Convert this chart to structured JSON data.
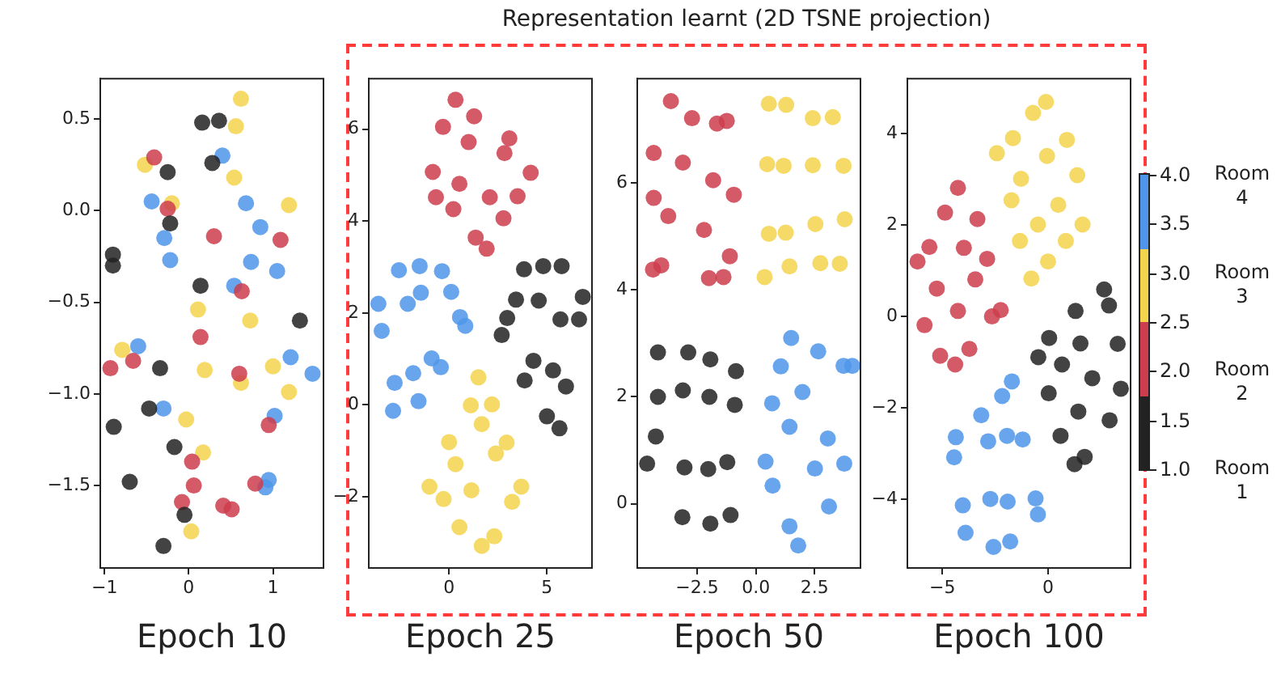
{
  "chart_data": [
    {
      "type": "scatter",
      "xlabel": "Epoch 10",
      "xlim": [
        -1.05,
        1.6
      ],
      "ylim": [
        -1.95,
        0.72
      ],
      "xticks": [
        {
          "value": -1,
          "label": "−1"
        },
        0,
        1
      ],
      "yticks": [
        {
          "value": -1.5,
          "label": "−1.5"
        },
        {
          "value": -1,
          "label": "−1.0"
        },
        {
          "value": -0.5,
          "label": "−0.5"
        },
        {
          "value": 0,
          "label": "0.0"
        },
        0.5
      ],
      "marker": "circle",
      "series": [
        {
          "color": "#222222",
          "x": [
            0.16,
            0.36,
            -0.25,
            0.28,
            -0.22,
            -0.9,
            -0.9,
            0.14,
            1.32,
            -0.34,
            -0.47,
            -0.89,
            -0.17,
            -0.7,
            -0.05,
            -0.3
          ],
          "values": [
            0.48,
            0.49,
            0.21,
            0.26,
            -0.07,
            -0.24,
            -0.3,
            -0.41,
            -0.6,
            -0.86,
            -1.08,
            -1.18,
            -1.29,
            -1.48,
            -1.66,
            -1.83
          ]
        },
        {
          "color": "#cc3d4d",
          "x": [
            -0.41,
            -0.25,
            0.3,
            1.09,
            0.63,
            0.14,
            -0.93,
            -0.66,
            0.6,
            0.95,
            0.04,
            0.06,
            0.79,
            -0.08,
            0.41,
            0.51
          ],
          "values": [
            0.29,
            0.01,
            -0.14,
            -0.16,
            -0.44,
            -0.69,
            -0.86,
            -0.82,
            -0.89,
            -1.17,
            -1.37,
            -1.5,
            -1.49,
            -1.59,
            -1.61,
            -1.63
          ]
        },
        {
          "color": "#f4d44d",
          "x": [
            0.62,
            0.56,
            -0.52,
            0.54,
            -0.2,
            1.19,
            0.11,
            0.73,
            -0.79,
            0.19,
            0.62,
            1.0,
            1.19,
            -0.03,
            0.17,
            0.03
          ],
          "values": [
            0.61,
            0.46,
            0.25,
            0.18,
            0.04,
            0.03,
            -0.54,
            -0.6,
            -0.76,
            -0.87,
            -0.94,
            -0.85,
            -0.99,
            -1.14,
            -1.32,
            -1.75
          ]
        },
        {
          "color": "#4f95ea",
          "x": [
            0.4,
            -0.44,
            0.68,
            0.85,
            -0.29,
            -0.22,
            0.74,
            1.05,
            0.54,
            -0.6,
            1.21,
            1.47,
            -0.3,
            1.02,
            0.95,
            0.91
          ],
          "values": [
            0.3,
            0.05,
            0.04,
            -0.09,
            -0.15,
            -0.27,
            -0.28,
            -0.33,
            -0.41,
            -0.74,
            -0.8,
            -0.89,
            -1.08,
            -1.12,
            -1.47,
            -1.51
          ]
        }
      ]
    },
    {
      "type": "scatter",
      "title": "Representation learnt (2D TSNE projection)",
      "xlabel": "Epoch 25",
      "xlim": [
        -4.1,
        7.3
      ],
      "ylim": [
        -3.55,
        7.1
      ],
      "xticks": [
        0,
        5
      ],
      "yticks": [
        {
          "value": -2,
          "label": "−2"
        },
        0,
        2,
        4,
        6
      ],
      "marker": "circle",
      "series": [
        {
          "color": "#222222",
          "x": [
            3.83,
            4.81,
            5.75,
            3.42,
            4.58,
            6.83,
            2.97,
            2.69,
            5.69,
            6.64,
            4.31,
            3.86,
            5.31,
            5.97,
            5.0,
            5.64
          ],
          "values": [
            2.95,
            3.02,
            3.02,
            2.29,
            2.27,
            2.35,
            1.89,
            1.52,
            1.86,
            1.86,
            0.96,
            0.53,
            0.75,
            0.4,
            -0.25,
            -0.51
          ]
        },
        {
          "color": "#cc3d4d",
          "x": [
            0.33,
            1.28,
            -0.31,
            1.0,
            3.08,
            2.83,
            -0.83,
            0.53,
            4.17,
            -0.67,
            0.22,
            2.08,
            3.5,
            2.78,
            1.36,
            1.92
          ],
          "values": [
            6.64,
            6.28,
            6.05,
            5.72,
            5.8,
            5.48,
            5.07,
            4.81,
            5.05,
            4.52,
            4.26,
            4.52,
            4.54,
            4.06,
            3.64,
            3.4
          ]
        },
        {
          "color": "#f4d44d",
          "x": [
            1.5,
            1.11,
            2.19,
            1.67,
            0,
            0.33,
            2.94,
            2.39,
            -1.0,
            -0.28,
            1.14,
            3.69,
            3.22,
            0.53,
            2.31,
            1.67
          ],
          "values": [
            0.6,
            -0.01,
            0.01,
            -0.42,
            -0.81,
            -1.29,
            -0.82,
            -1.06,
            -1.78,
            -2.05,
            -1.86,
            -1.78,
            -2.11,
            -2.66,
            -2.86,
            -3.07
          ]
        },
        {
          "color": "#4f95ea",
          "x": [
            -2.56,
            -1.5,
            -0.36,
            -3.61,
            -2.11,
            -1.44,
            0.11,
            -3.44,
            0.56,
            0.83,
            -0.89,
            -0.42,
            -1.83,
            -2.78,
            -1.56,
            -2.86
          ],
          "values": [
            2.93,
            3.02,
            2.91,
            2.2,
            2.2,
            2.44,
            2.46,
            1.61,
            1.91,
            1.72,
            1.01,
            0.82,
            0.69,
            0.48,
            0.08,
            -0.13
          ]
        }
      ]
    },
    {
      "type": "scatter",
      "xlabel": "Epoch 50",
      "xlim": [
        -5.05,
        4.45
      ],
      "ylim": [
        -1.2,
        7.95
      ],
      "xticks": [
        {
          "value": -2.5,
          "label": "−2.5"
        },
        {
          "value": 0,
          "label": "0.0"
        },
        2.5
      ],
      "yticks": [
        0,
        2,
        4,
        6
      ],
      "marker": "circle",
      "series": [
        {
          "color": "#222222",
          "x": [
            -4.17,
            -2.88,
            -1.94,
            -0.85,
            -4.17,
            -3.11,
            -1.98,
            -0.9,
            -4.26,
            -4.63,
            -3.04,
            -2.03,
            -1.22,
            -3.13,
            -1.94,
            -1.08
          ],
          "values": [
            2.83,
            2.83,
            2.7,
            2.48,
            2.0,
            2.12,
            2.0,
            1.85,
            1.26,
            0.75,
            0.68,
            0.65,
            0.78,
            -0.25,
            -0.37,
            -0.21
          ]
        },
        {
          "color": "#cc3d4d",
          "x": [
            -3.62,
            -2.72,
            -1.66,
            -1.24,
            -4.35,
            -3.11,
            -1.82,
            -0.94,
            -4.35,
            -3.73,
            -2.21,
            -1.11,
            -4.38,
            -4.03,
            -2.0,
            -1.38
          ],
          "values": [
            7.53,
            7.21,
            7.11,
            7.16,
            6.56,
            6.38,
            6.05,
            5.78,
            5.72,
            5.38,
            5.12,
            4.63,
            4.38,
            4.46,
            4.22,
            4.24
          ]
        },
        {
          "color": "#f4d44d",
          "x": [
            0.55,
            1.29,
            2.42,
            3.27,
            0.48,
            1.18,
            2.42,
            3.73,
            0.55,
            1.27,
            2.53,
            3.78,
            0.37,
            1.43,
            2.74,
            3.57
          ],
          "values": [
            7.48,
            7.46,
            7.21,
            7.23,
            6.35,
            6.32,
            6.33,
            6.32,
            5.05,
            5.07,
            5.23,
            5.32,
            4.24,
            4.44,
            4.5,
            4.49
          ]
        },
        {
          "color": "#4f95ea",
          "x": [
            1.5,
            2.65,
            1.06,
            3.73,
            4.1,
            1.98,
            0.69,
            1.43,
            3.06,
            0.41,
            2.51,
            3.76,
            0.71,
            3.11,
            1.43,
            1.8
          ],
          "values": [
            3.1,
            2.85,
            2.57,
            2.58,
            2.58,
            2.09,
            1.88,
            1.44,
            1.22,
            0.79,
            0.66,
            0.75,
            0.34,
            -0.05,
            -0.42,
            -0.78
          ]
        }
      ]
    },
    {
      "type": "scatter",
      "xlabel": "Epoch 100",
      "xlim": [
        -6.65,
        3.9
      ],
      "ylim": [
        -5.5,
        5.2
      ],
      "xticks": [
        {
          "value": -5,
          "label": "−5"
        },
        0
      ],
      "yticks": [
        {
          "value": -4,
          "label": "−4"
        },
        {
          "value": -2,
          "label": "−2"
        },
        0,
        2,
        4
      ],
      "marker": "circle",
      "annotations": [
        "Room 1",
        "Room 2",
        "Room 3",
        "Room 4"
      ],
      "clim": [
        1,
        4
      ],
      "cticks": [
        {
          "value": 1,
          "label": "1.0"
        },
        1.5,
        {
          "value": 2,
          "label": "2.0"
        },
        2.5,
        {
          "value": 3,
          "label": "3.0"
        },
        3.5,
        {
          "value": 4,
          "label": "4.0"
        }
      ],
      "series": [
        {
          "color": "#222222",
          "x": [
            2.65,
            2.88,
            1.3,
            0.05,
            1.53,
            3.29,
            -0.46,
            0.66,
            2.09,
            3.44,
            0.03,
            1.43,
            2.91,
            0.59,
            1.73,
            1.25
          ],
          "values": [
            0.59,
            0.24,
            0.12,
            -0.47,
            -0.59,
            -0.6,
            -0.89,
            -1.05,
            -1.35,
            -1.58,
            -1.68,
            -2.08,
            -2.27,
            -2.61,
            -3.07,
            -3.23
          ]
        },
        {
          "color": "#cc3d4d",
          "x": [
            -4.26,
            -4.87,
            -3.34,
            -5.61,
            -6.17,
            -3.98,
            -2.88,
            -5.26,
            -3.44,
            -5.84,
            -4.26,
            -2.65,
            -2.24,
            -5.1,
            -3.72,
            -4.39
          ],
          "values": [
            2.81,
            2.27,
            2.13,
            1.52,
            1.2,
            1.5,
            1.26,
            0.61,
            0.81,
            -0.19,
            0.12,
            0,
            0.14,
            -0.86,
            -0.71,
            -1.05
          ]
        },
        {
          "color": "#f4d44d",
          "x": [
            -0.71,
            -0.1,
            -1.66,
            -2.42,
            -0.05,
            0.89,
            -1.28,
            1.38,
            -1.73,
            0.48,
            -0.48,
            1.63,
            -1.33,
            0.84,
            0,
            -0.79
          ],
          "values": [
            4.45,
            4.69,
            3.9,
            3.57,
            3.51,
            3.86,
            3.01,
            3.09,
            2.54,
            2.44,
            2.01,
            2.01,
            1.65,
            1.65,
            1.2,
            0.83
          ]
        },
        {
          "color": "#4f95ea",
          "x": [
            -1.71,
            -2.17,
            -3.16,
            -4.36,
            -4.44,
            -2.83,
            -1.94,
            -1.2,
            -4.03,
            -3.9,
            -2.73,
            -1.91,
            -0.59,
            -0.48,
            -2.58,
            -1.79
          ],
          "values": [
            -1.42,
            -1.74,
            -2.16,
            -2.64,
            -3.08,
            -2.73,
            -2.61,
            -2.69,
            -4.13,
            -4.73,
            -3.99,
            -4.05,
            -3.98,
            -4.33,
            -5.04,
            -4.92
          ]
        }
      ]
    }
  ]
}
